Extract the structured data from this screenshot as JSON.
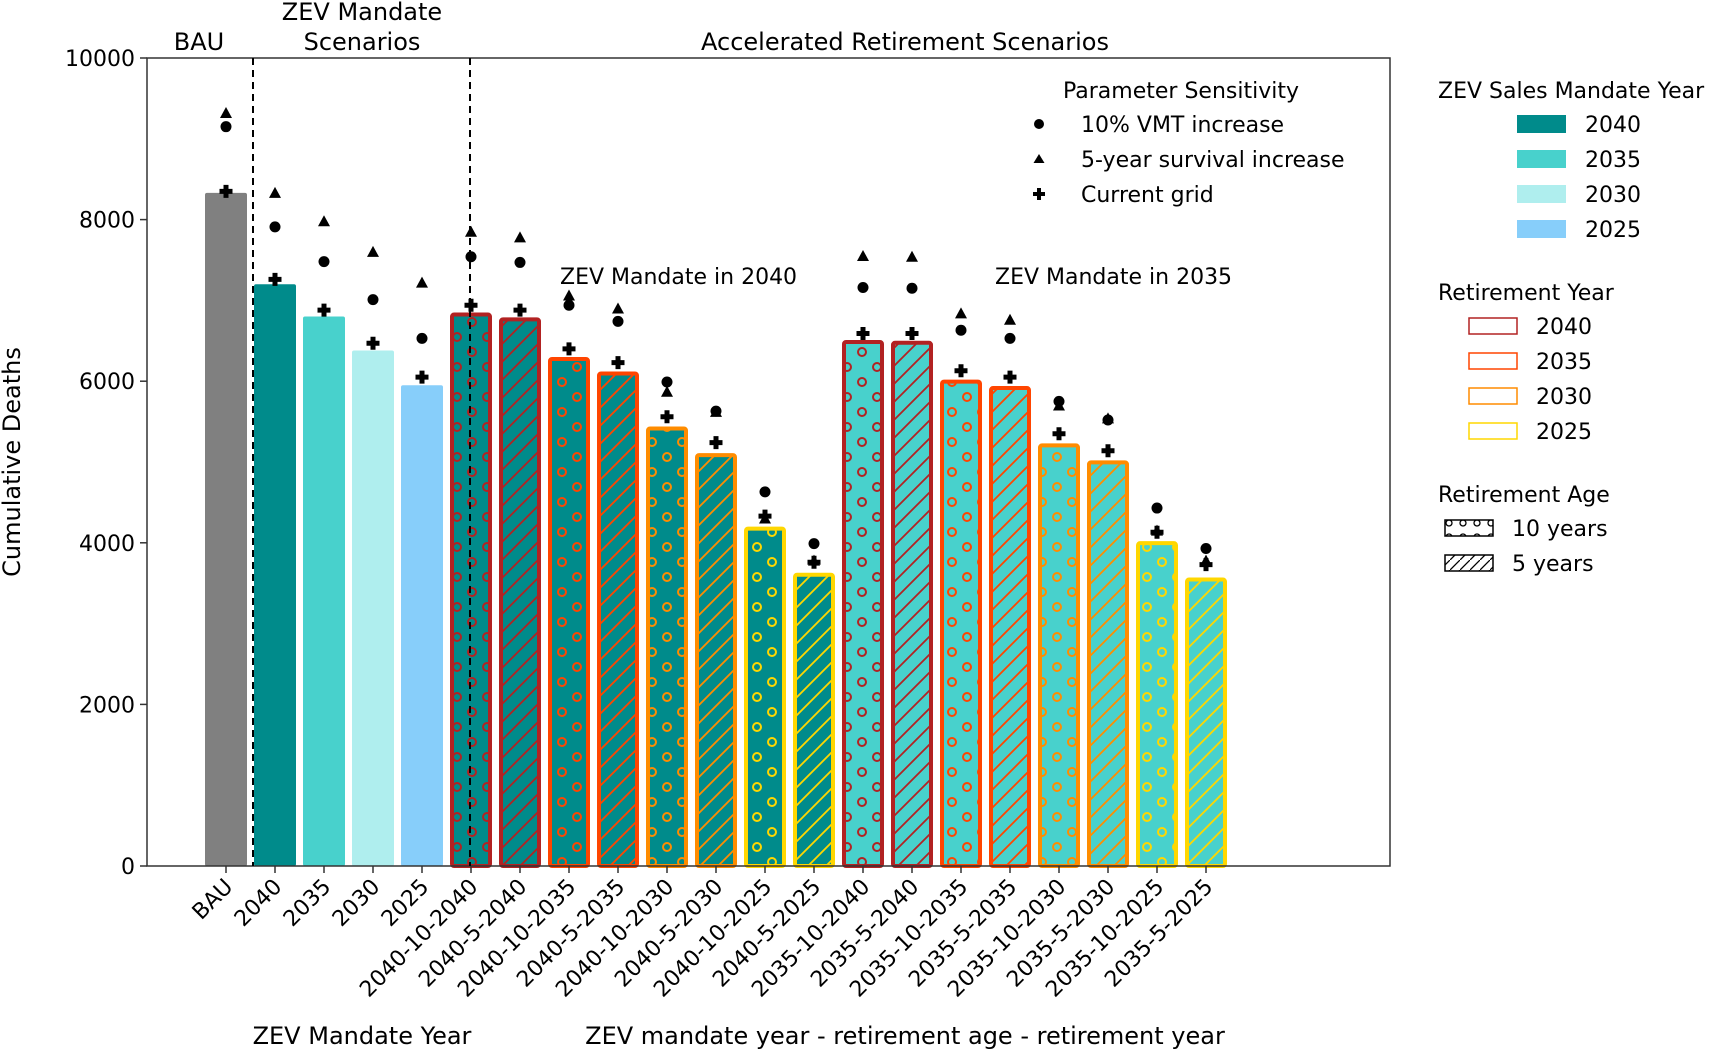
{
  "chart_data": {
    "type": "bar",
    "ylabel": "Cumulative Deaths",
    "ylim": [
      0,
      10000
    ],
    "yticks": [
      0,
      2000,
      4000,
      6000,
      8000,
      10000
    ],
    "grid": false,
    "section_titles": [
      "BAU",
      "ZEV Mandate\nScenarios",
      "Accelerated Retirement Scenarios"
    ],
    "xlabel_left": "ZEV Mandate Year",
    "xlabel_right": "ZEV mandate year - retirement age - retirement year",
    "annotations": [
      "ZEV Mandate in 2040",
      "ZEV Mandate in 2035"
    ],
    "categories": [
      "BAU",
      "2040",
      "2035",
      "2030",
      "2025",
      "2040-10-2040",
      "2040-5-2040",
      "2040-10-2035",
      "2040-5-2035",
      "2040-10-2030",
      "2040-5-2030",
      "2040-10-2025",
      "2040-5-2025",
      "2035-10-2040",
      "2035-5-2040",
      "2035-10-2035",
      "2035-5-2035",
      "2035-10-2030",
      "2035-5-2030",
      "2035-10-2025",
      "2035-5-2025"
    ],
    "values": [
      8330,
      7200,
      6800,
      6380,
      5950,
      6850,
      6790,
      6300,
      6120,
      5440,
      5110,
      4200,
      3630,
      6510,
      6500,
      6020,
      5940,
      5230,
      5020,
      4020,
      3570
    ],
    "fill_key": [
      "bau",
      "2040",
      "2035",
      "2030",
      "2025",
      "2040",
      "2040",
      "2040",
      "2040",
      "2040",
      "2040",
      "2040",
      "2040",
      "2035",
      "2035",
      "2035",
      "2035",
      "2035",
      "2035",
      "2035",
      "2035"
    ],
    "edge_key": [
      null,
      null,
      null,
      null,
      null,
      "2040",
      "2040",
      "2035",
      "2035",
      "2030",
      "2030",
      "2025",
      "2025",
      "2040",
      "2040",
      "2035",
      "2035",
      "2030",
      "2030",
      "2025",
      "2025"
    ],
    "hatch_key": [
      null,
      null,
      null,
      null,
      null,
      "10",
      "5",
      "10",
      "5",
      "10",
      "5",
      "10",
      "5",
      "10",
      "5",
      "10",
      "5",
      "10",
      "5",
      "10",
      "5"
    ],
    "sensitivity": [
      {
        "name": "10% VMT increase",
        "marker": "circle",
        "values": [
          9150,
          7910,
          7480,
          7010,
          6530,
          7540,
          7470,
          6940,
          6740,
          5990,
          5630,
          4630,
          3990,
          7160,
          7150,
          6630,
          6530,
          5750,
          5520,
          4430,
          3930
        ]
      },
      {
        "name": "5-year survival increase",
        "marker": "triangle",
        "values": [
          9320,
          8330,
          7980,
          7600,
          7220,
          7850,
          7780,
          7060,
          6900,
          5870,
          5620,
          4300,
          3780,
          7550,
          7540,
          6840,
          6760,
          5700,
          5540,
          4150,
          3780
        ]
      },
      {
        "name": "Current grid",
        "marker": "plus",
        "values": [
          8350,
          7260,
          6880,
          6470,
          6050,
          6940,
          6880,
          6400,
          6230,
          5560,
          5240,
          4330,
          3760,
          6590,
          6590,
          6130,
          6050,
          5350,
          5140,
          4130,
          3730
        ]
      }
    ],
    "colors": {
      "fill": {
        "bau": "#808080",
        "2040": "#008b8b",
        "2035": "#48d1cc",
        "2030": "#afeeee",
        "2025": "#87cefa"
      },
      "edge": {
        "2040": "#b22222",
        "2035": "#ff4500",
        "2030": "#ff8c00",
        "2025": "#ffd700"
      }
    },
    "legends": {
      "sensitivity": {
        "title": "Parameter Sensitivity",
        "items": [
          "10% VMT increase",
          "5-year survival increase",
          "Current grid"
        ],
        "placement": "top-right inside"
      },
      "mandate": {
        "title": "ZEV Sales Mandate Year",
        "items": [
          "2040",
          "2035",
          "2030",
          "2025"
        ],
        "placement": "right outside"
      },
      "retirement_year": {
        "title": "Retirement Year",
        "items": [
          "2040",
          "2035",
          "2030",
          "2025"
        ],
        "placement": "right outside"
      },
      "retirement_age": {
        "title": "Retirement Age",
        "items": [
          "10 years",
          "5 years"
        ],
        "placement": "right outside"
      }
    }
  }
}
